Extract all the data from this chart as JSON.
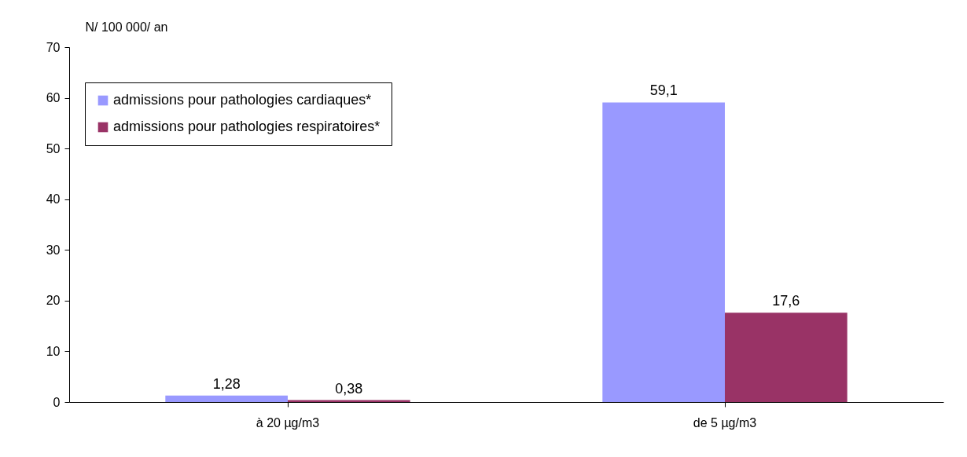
{
  "chart_data": {
    "type": "bar",
    "ylabel": "N/ 100 000/ an",
    "categories": [
      "à 20 µg/m3",
      "de 5 µg/m3"
    ],
    "series": [
      {
        "name": "admissions pour pathologies cardiaques*",
        "color": "#9999ff",
        "values": [
          1.28,
          59.1
        ],
        "value_labels": [
          "1,28",
          "59,1"
        ]
      },
      {
        "name": "admissions pour pathologies respiratoires*",
        "color": "#993366",
        "values": [
          0.38,
          17.6
        ],
        "value_labels": [
          "0,38",
          "17,6"
        ]
      }
    ],
    "ylim": [
      0,
      70
    ],
    "yticks": [
      0,
      10,
      20,
      30,
      40,
      50,
      60,
      70
    ],
    "grid": false,
    "legend": "top left"
  }
}
